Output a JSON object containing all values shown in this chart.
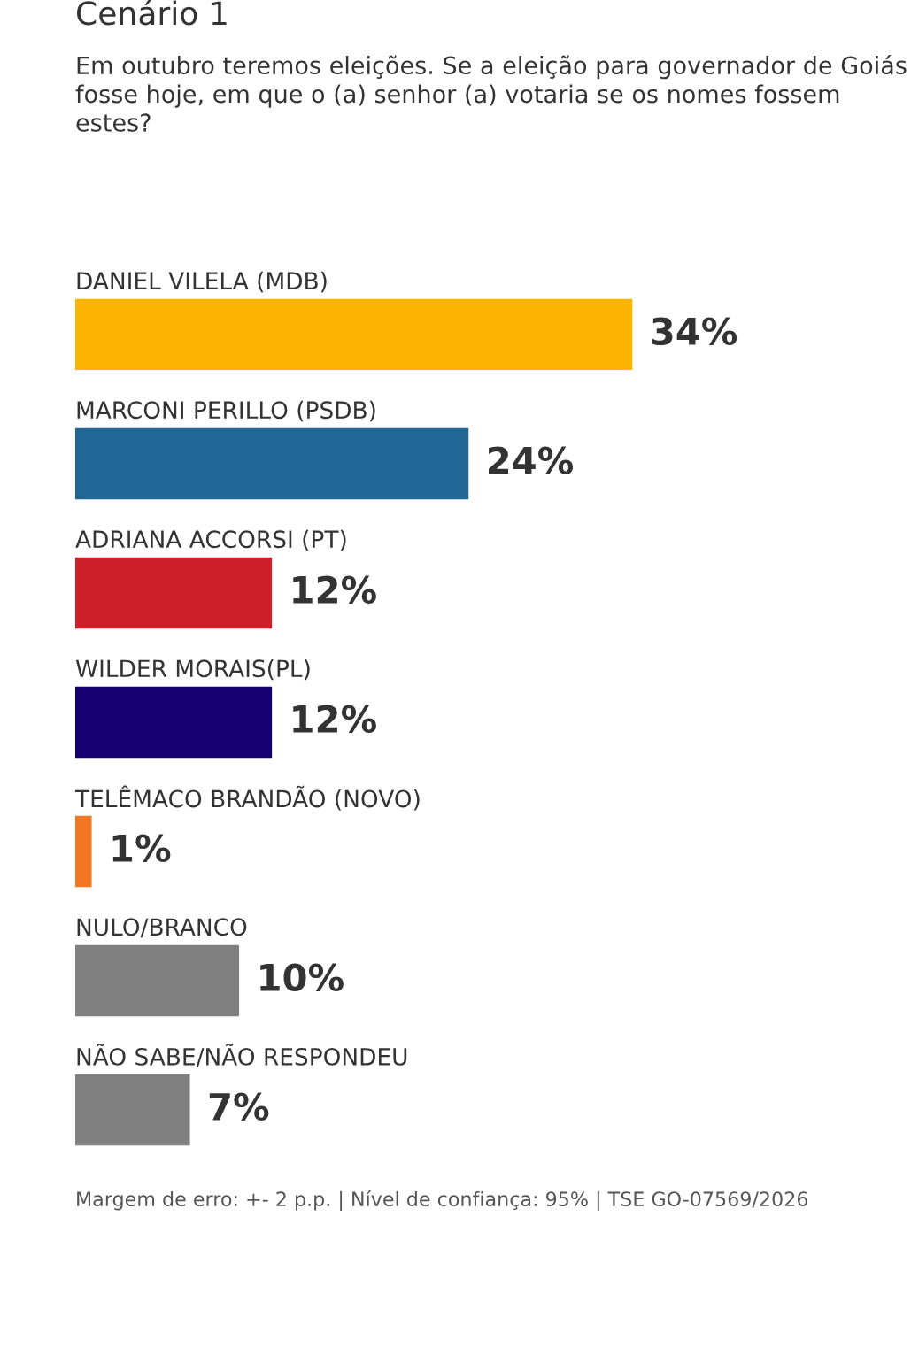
{
  "chart_data": {
    "type": "bar",
    "orientation": "horizontal",
    "title": "Cenário 1",
    "subtitle": "Em outubro teremos eleições. Se a eleição para governador de Goiás fosse hoje, em que o (a) senhor (a) votaria se os nomes fossem estes?",
    "categories": [
      "DANIEL VILELA (MDB)",
      "MARCONI PERILLO (PSDB)",
      "ADRIANA ACCORSI (PT)",
      "WILDER MORAIS(PL)",
      "TELÊMACO BRANDÃO (NOVO)",
      "NULO/BRANCO",
      "NÃO SABE/NÃO RESPONDEU"
    ],
    "values": [
      34,
      24,
      12,
      12,
      1,
      10,
      7
    ],
    "colors": [
      "#fdb400",
      "#206796",
      "#cf1f2a",
      "#140070",
      "#f27623",
      "#808080",
      "#808080"
    ],
    "value_labels": [
      "34%",
      "24%",
      "12%",
      "12%",
      "1%",
      "10%",
      "7%"
    ],
    "annotations": [
      "Margem de erro: +- 2 p.p. | Nível de confiança: 95% | TSE GO-07569/2026"
    ]
  }
}
